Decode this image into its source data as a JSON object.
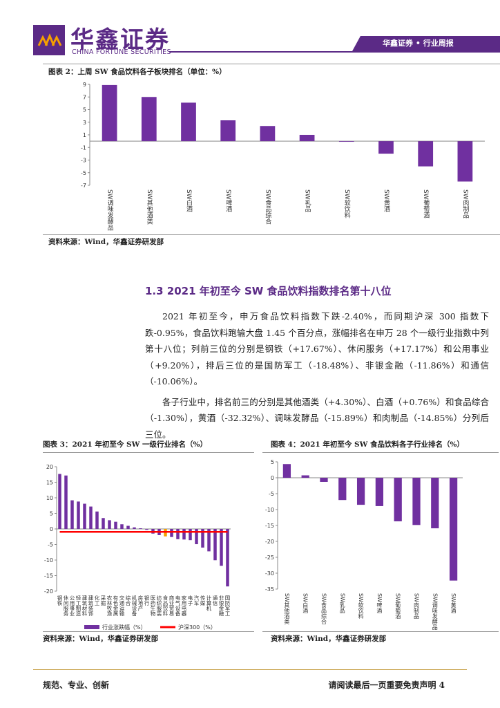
{
  "header": {
    "logo": "华鑫证券",
    "logo_en": "CHINA FORTUNE SECURITIES",
    "right_title": "华鑫证券 • 行业周报"
  },
  "chart_data": [
    {
      "type": "bar",
      "title": "图表 2：上周 SW 食品饮料各子板块排名（单位：%）",
      "categories": [
        "SW调味发酵品",
        "SW其他酒类",
        "SW白酒",
        "SW啤酒",
        "SW食品综合",
        "SW乳品",
        "SW软饮料",
        "SW黄酒",
        "SW葡萄酒",
        "SW肉制品"
      ],
      "values": [
        8.9,
        7.0,
        6.1,
        3.3,
        2.4,
        1.0,
        -0.1,
        -2.0,
        -4.0,
        -6.4
      ],
      "color": "#7030a0",
      "ylim": [
        -7,
        9
      ],
      "yticks": [
        -7,
        -5,
        -3,
        -1,
        1,
        3,
        5,
        7,
        9
      ],
      "grid": false,
      "source": "资料来源：Wind，华鑫证券研发部"
    },
    {
      "type": "bar",
      "title": "图表 3：2021 年初至今 SW 一级行业排名（%）",
      "categories": [
        "钢铁",
        "休闲服务",
        "公用事业",
        "轻工制造",
        "建筑材料",
        "建筑装饰",
        "化工",
        "采掘",
        "农林牧渔",
        "有色金属",
        "交通运输",
        "综合",
        "机械设备",
        "房地产",
        "银行",
        "医药生物",
        "纺织服装",
        "食品饮料",
        "商业贸易",
        "电气设备",
        "家用电器",
        "电子",
        "汽车",
        "传媒",
        "计算机",
        "通信",
        "非银金融",
        "国防军工"
      ],
      "series": [
        {
          "name": "行业涨跌幅（%）",
          "type": "bar",
          "color": "#7030a0",
          "colors": [
            "#7030a0",
            "#7030a0",
            "#7030a0",
            "#7030a0",
            "#7030a0",
            "#7030a0",
            "#7030a0",
            "#7030a0",
            "#7030a0",
            "#7030a0",
            "#7030a0",
            "#7030a0",
            "#7030a0",
            "#7030a0",
            "#7030a0",
            "#7030a0",
            "#7030a0",
            "#f5a000",
            "#7030a0",
            "#7030a0",
            "#7030a0",
            "#7030a0",
            "#7030a0",
            "#7030a0",
            "#7030a0",
            "#7030a0",
            "#7030a0",
            "#7030a0"
          ],
          "values": [
            17.67,
            17.17,
            9.2,
            8.8,
            8.1,
            7.2,
            5.6,
            3.5,
            2.8,
            2.3,
            1.5,
            1.0,
            0.5,
            0.2,
            -0.3,
            -1.5,
            -2.0,
            -2.4,
            -2.6,
            -3.3,
            -3.4,
            -3.6,
            -4.9,
            -6.0,
            -7.2,
            -10.06,
            -11.86,
            -18.48
          ]
        },
        {
          "name": "沪深300（%）",
          "type": "line",
          "color": "#ff0000",
          "values": [
            -0.95,
            -0.95,
            -0.95,
            -0.95,
            -0.95,
            -0.95,
            -0.95,
            -0.95,
            -0.95,
            -0.95,
            -0.95,
            -0.95,
            -0.95,
            -0.95,
            -0.95,
            -0.95,
            -0.95,
            -0.95,
            -0.95,
            -0.95,
            -0.95,
            -0.95,
            -0.95,
            -0.95,
            -0.95,
            -0.95,
            -0.95,
            -0.95
          ]
        }
      ],
      "ylim": [
        -20,
        20
      ],
      "yticks": [
        -20,
        -15,
        -10,
        -5,
        0,
        5,
        10,
        15,
        20
      ],
      "grid": false,
      "legend": "bottom",
      "source": "资料来源：Wind，华鑫证券研发部"
    },
    {
      "type": "bar",
      "title": "图表 4：2021 年初至今 SW 食品饮料各子行业排名（%）",
      "categories": [
        "SW其他酒类",
        "SW白酒",
        "SW食品综合",
        "SW乳品",
        "SW软饮料",
        "SW啤酒",
        "SW葡萄酒",
        "SW肉制品",
        "SW调味发酵品",
        "SW黄酒"
      ],
      "values": [
        4.3,
        0.76,
        -1.3,
        -7.0,
        -8.5,
        -8.9,
        -13.7,
        -14.85,
        -15.89,
        -32.32
      ],
      "color": "#7030a0",
      "ylim": [
        -35,
        5
      ],
      "yticks": [
        -35,
        -30,
        -25,
        -20,
        -15,
        -10,
        -5,
        0,
        5
      ],
      "grid": false,
      "source": "资料来源：Wind，华鑫证券研发部"
    }
  ],
  "section": {
    "title": "1.3 2021 年初至今 SW 食品饮料指数排名第十八位",
    "paragraphs": [
      "2021 年初至今，申万食品饮料指数下跌-2.40%，而同期沪深 300 指数下跌-0.95%，食品饮料跑输大盘 1.45 个百分点，涨幅排名在申万 28 个一级行业指数中列第十八位；列前三位的分别是钢铁（+17.67%）、休闲服务（+17.17%）和公用事业（+9.20%），排后三位的是国防军工（-18.48%）、非银金融（-11.86%）和通信（-10.06%）。",
      "各子行业中，排名前三的分别是其他酒类（+4.30%）、白酒（+0.76%）和食品综合（-1.30%），黄酒（-32.32%）、调味发酵品（-15.89%）和肉制品（-14.85%）分列后三位。"
    ]
  },
  "footer": {
    "left": "规范、专业、创新",
    "right": "请阅读最后一页重要免责声明 4"
  }
}
